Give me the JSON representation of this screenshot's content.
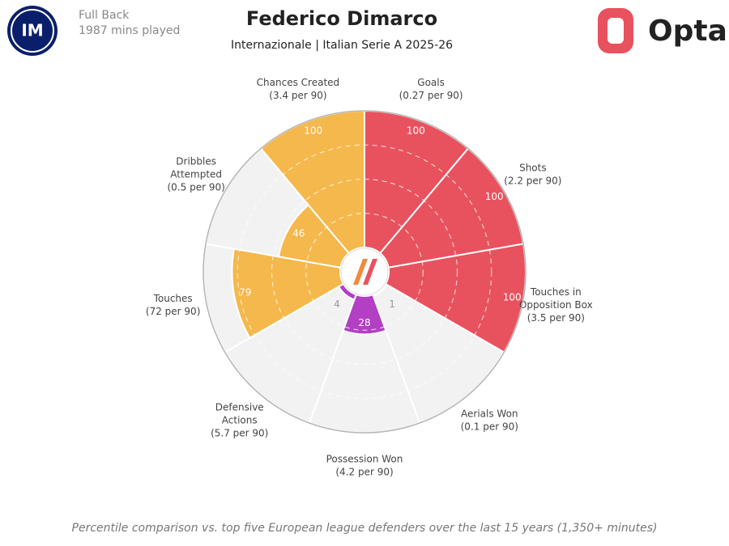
{
  "header": {
    "position": "Full Back",
    "minutes": "1987 mins played",
    "brand": "Opta"
  },
  "chart_data": {
    "type": "pizza",
    "title": "Federico Dimarco",
    "subtitle": "Internazionale | Italian Serie A 2025-26",
    "categories": [
      [
        "Goals"
      ],
      [
        "Shots"
      ],
      [
        "Touches in",
        "Opposition Box"
      ],
      [
        "Aerials Won"
      ],
      [
        "Possession Won"
      ],
      [
        "Defensive",
        "Actions"
      ],
      [
        "Touches"
      ],
      [
        "Dribbles",
        "Attempted"
      ],
      [
        "Chances Created"
      ]
    ],
    "per_90_labels": [
      "(0.27 per 90)",
      "(2.2 per 90)",
      "(3.5 per 90)",
      "(0.1 per 90)",
      "(4.2 per 90)",
      "(5.7 per 90)",
      "(72 per 90)",
      "(0.5 per 90)",
      "(3.4 per 90)"
    ],
    "values": [
      100,
      100,
      100,
      1,
      28,
      4,
      79,
      46,
      100
    ],
    "colors": [
      "#e8525e",
      "#e8525e",
      "#e8525e",
      "#b23fc4",
      "#b23fc4",
      "#b23fc4",
      "#f5b84c",
      "#f5b84c",
      "#f5b84c"
    ],
    "rlim": [
      0,
      100
    ],
    "rticks": [
      25,
      50,
      75
    ],
    "footnote": "Percentile comparison vs. top five European league defenders over the last 15 years (1,350+ minutes)"
  }
}
